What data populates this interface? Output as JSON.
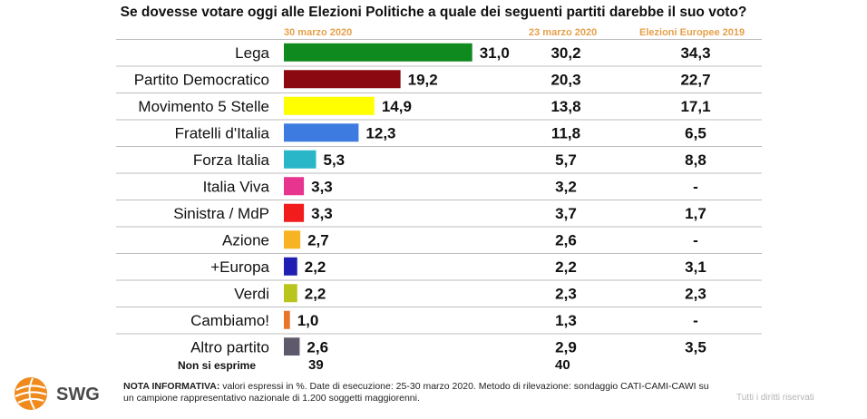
{
  "title": "Se dovesse votare oggi alle Elezioni Politiche a quale dei seguenti partiti darebbe il suo voto?",
  "column_headers": {
    "current": "30 marzo 2020",
    "previous": "23 marzo 2020",
    "european": "Elezioni Europee 2019"
  },
  "chart_data": {
    "type": "bar",
    "categories": [
      "Lega",
      "Partito Democratico",
      "Movimento 5 Stelle",
      "Fratelli d'Italia",
      "Forza Italia",
      "Italia Viva",
      "Sinistra / MdP",
      "Azione",
      "+Europa",
      "Verdi",
      "Cambiamo!",
      "Altro partito"
    ],
    "values": [
      31.0,
      19.2,
      14.9,
      12.3,
      5.3,
      3.3,
      3.3,
      2.7,
      2.2,
      2.2,
      1.0,
      2.6
    ],
    "value_labels": [
      "31,0",
      "19,2",
      "14,9",
      "12,3",
      "5,3",
      "3,3",
      "3,3",
      "2,7",
      "2,2",
      "2,2",
      "1,0",
      "2,6"
    ],
    "colors": [
      "#0f8a1f",
      "#8b0a12",
      "#ffff00",
      "#3e7be0",
      "#29b6c8",
      "#e6348f",
      "#f21c1c",
      "#f7b322",
      "#1f1fb4",
      "#b9c41c",
      "#e8742a",
      "#5e5a6b"
    ],
    "previous_values": [
      "30,2",
      "20,3",
      "13,8",
      "11,8",
      "5,7",
      "3,2",
      "3,7",
      "2,6",
      "2,2",
      "2,3",
      "1,3",
      "2,9"
    ],
    "european_values": [
      "34,3",
      "22,7",
      "17,1",
      "6,5",
      "8,8",
      "-",
      "1,7",
      "-",
      "3,1",
      "2,3",
      "-",
      "3,5"
    ],
    "grid": false
  },
  "non_si_esprime": {
    "label": "Non si esprime",
    "current": "39",
    "previous": "40"
  },
  "brand": "SWG",
  "note": {
    "bold": "NOTA INFORMATIVA:",
    "text": " valori espressi in %. Date di esecuzione: 25-30 marzo 2020. Metodo di rilevazione: sondaggio CATI-CAMI-CAWI su un campione rappresentativo nazionale di 1.200 soggetti maggiorenni."
  },
  "rights": "Tutti i diritti riservati"
}
